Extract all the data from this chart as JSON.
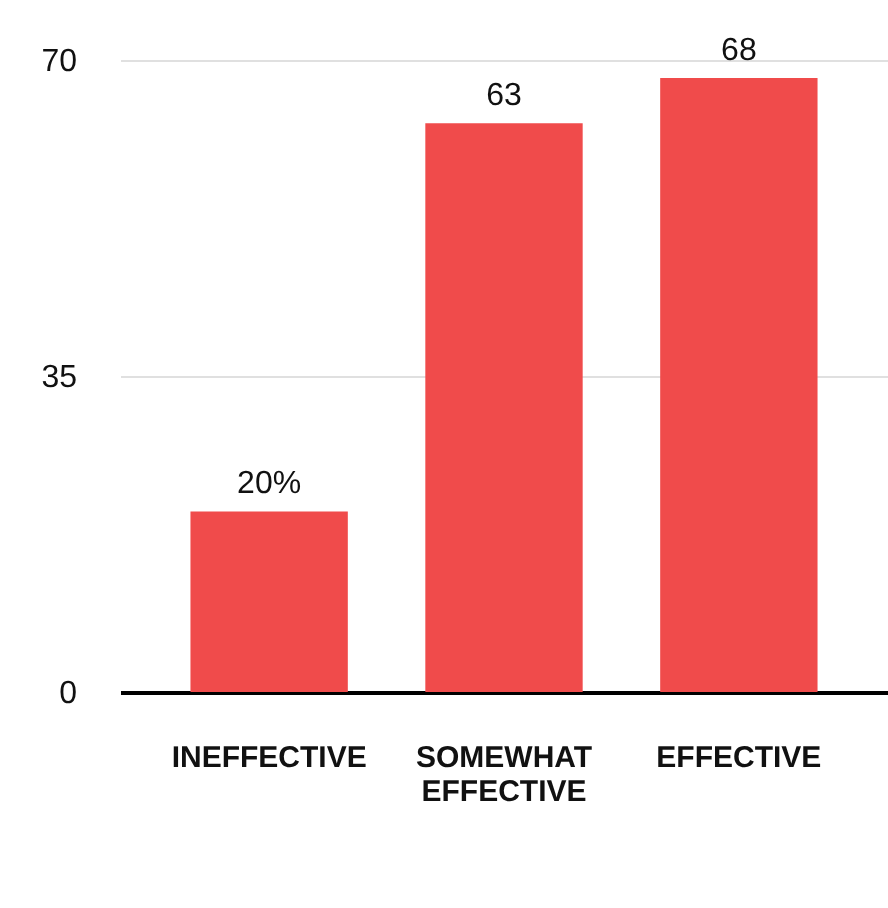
{
  "chart_data": {
    "type": "bar",
    "categories": [
      "INEFFECTIVE",
      "SOMEWHAT EFFECTIVE",
      "EFFECTIVE"
    ],
    "values": [
      20,
      63,
      68
    ],
    "value_labels": [
      "20%",
      "63",
      "68"
    ],
    "color": "#f04b4b",
    "ylim": [
      0,
      70
    ],
    "yticks": [
      0,
      35,
      70
    ],
    "grid": "y"
  }
}
